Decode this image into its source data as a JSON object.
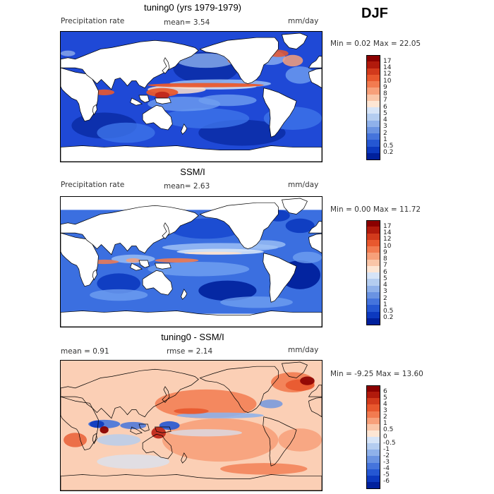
{
  "season": "DJF",
  "panels": [
    {
      "title": "tuning0 (yrs 1979-1979)",
      "left_label": "Precipitation rate",
      "mid_label": "mean=   3.54",
      "units": "mm/day",
      "minmax": "Min =   0.02 Max =  22.05",
      "style": "model",
      "colorbar": {
        "labels": [
          "17",
          "14",
          "12",
          "10",
          "9",
          "8",
          "7",
          "6",
          "5",
          "4",
          "3",
          "2",
          "1",
          "0.5",
          "0.2"
        ],
        "colors": [
          "#8b0000",
          "#b11a0c",
          "#d23a1c",
          "#e8582e",
          "#f27b50",
          "#f7a07a",
          "#fac6a8",
          "#fde6d4",
          "#d6e4f7",
          "#b4cdf0",
          "#8fb1ea",
          "#6a93e2",
          "#4574dc",
          "#2557d2",
          "#0c39bf",
          "#00209c"
        ]
      }
    },
    {
      "title": "SSM/I",
      "left_label": "Precipitation rate",
      "mid_label": "mean=   2.63",
      "units": "mm/day",
      "minmax": "Min =   0.00 Max =  11.72",
      "style": "obs",
      "colorbar": {
        "labels": [
          "17",
          "14",
          "12",
          "10",
          "9",
          "8",
          "7",
          "6",
          "5",
          "4",
          "3",
          "2",
          "1",
          "0.5",
          "0.2"
        ],
        "colors": [
          "#8b0000",
          "#b11a0c",
          "#d23a1c",
          "#e8582e",
          "#f27b50",
          "#f7a07a",
          "#fac6a8",
          "#fde6d4",
          "#d6e4f7",
          "#b4cdf0",
          "#8fb1ea",
          "#6a93e2",
          "#4574dc",
          "#2557d2",
          "#0c39bf",
          "#00209c"
        ]
      }
    },
    {
      "title": "tuning0 - SSM/I",
      "left_label": "mean =    0.91",
      "mid_label": "rmse =    2.14",
      "units": "mm/day",
      "minmax": "Min =  -9.25 Max =  13.60",
      "style": "diff",
      "colorbar": {
        "labels": [
          "6",
          "5",
          "4",
          "3",
          "2",
          "1",
          "0.5",
          "0",
          "-0.5",
          "-1",
          "-2",
          "-3",
          "-4",
          "-5",
          "-6"
        ],
        "colors": [
          "#8b0000",
          "#b11a0c",
          "#d23a1c",
          "#e8582e",
          "#f27b50",
          "#f7a07a",
          "#fac6a8",
          "#fde6d4",
          "#d6e4f7",
          "#b4cdf0",
          "#8fb1ea",
          "#6a93e2",
          "#4574dc",
          "#2557d2",
          "#0c39bf",
          "#00209c"
        ]
      }
    }
  ]
}
